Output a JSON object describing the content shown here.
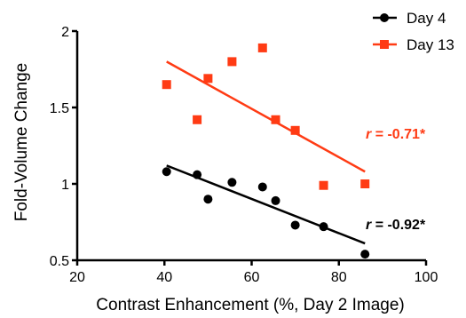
{
  "chart_data": {
    "type": "scatter",
    "xlabel": "Contrast Enhancement (%, Day 2 Image)",
    "ylabel": "Fold-Volume Change",
    "xlim": [
      20,
      100
    ],
    "ylim": [
      0.5,
      2
    ],
    "x_ticks": [
      "20",
      "40",
      "60",
      "80",
      "100"
    ],
    "y_ticks": [
      "0.5",
      "1",
      "1.5",
      "2"
    ],
    "x_tick_values": [
      20,
      40,
      60,
      80,
      100
    ],
    "y_tick_values": [
      0.5,
      1,
      1.5,
      2
    ],
    "grid": false,
    "legend_position": "top-right",
    "series": [
      {
        "name": "Day 4",
        "marker": "circle",
        "color": "#000000",
        "x": [
          40.5,
          47.5,
          50,
          55.5,
          62.5,
          65.5,
          70,
          76.5,
          86
        ],
        "y": [
          1.08,
          1.06,
          0.9,
          1.01,
          0.98,
          0.89,
          0.73,
          0.72,
          0.54
        ],
        "fit": {
          "x": [
            40.5,
            86
          ],
          "y": [
            1.12,
            0.61
          ]
        },
        "r_label": {
          "prefix": "r",
          "value": "= -0.92*"
        }
      },
      {
        "name": "Day 13",
        "marker": "square",
        "color": "#ff3b14",
        "x": [
          40.5,
          47.5,
          50,
          55.5,
          62.5,
          65.5,
          70,
          76.5,
          86
        ],
        "y": [
          1.65,
          1.42,
          1.69,
          1.8,
          1.89,
          1.42,
          1.35,
          0.99,
          1.0
        ],
        "fit": {
          "x": [
            40.5,
            86
          ],
          "y": [
            1.8,
            1.08
          ]
        },
        "r_label": {
          "prefix": "r",
          "value": "= -0.71*"
        }
      }
    ]
  }
}
